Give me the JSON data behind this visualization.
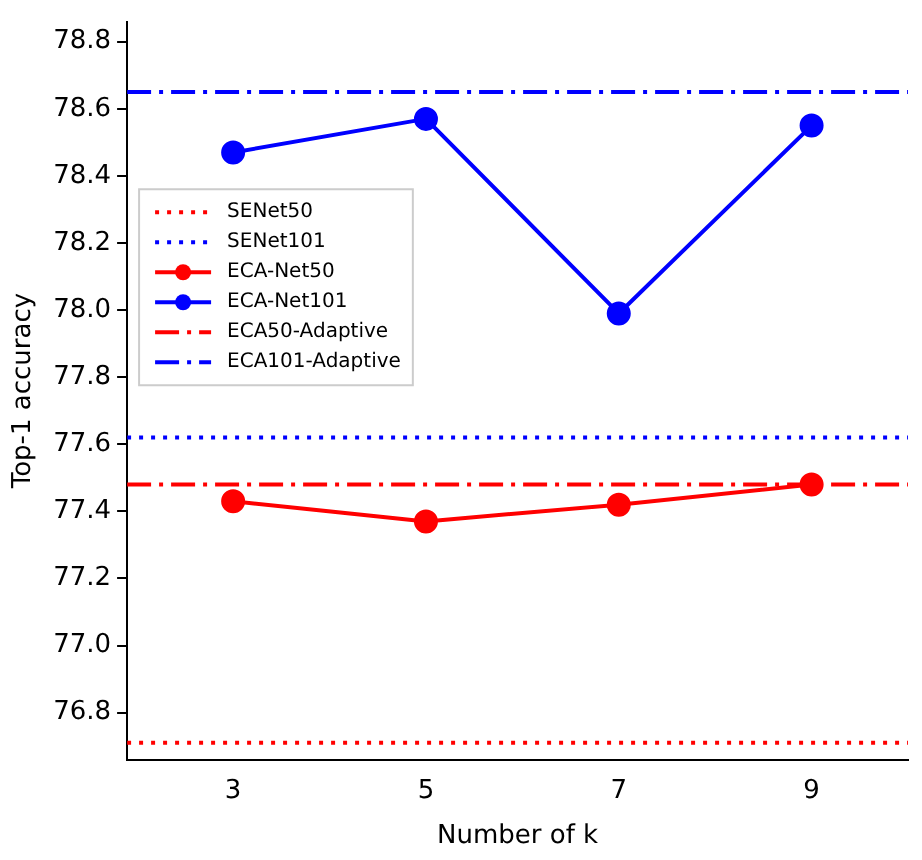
{
  "chart_data": {
    "type": "line",
    "xlabel": "Number of k",
    "ylabel": "Top-1 accuracy",
    "x": [
      3,
      5,
      7,
      9
    ],
    "series": [
      {
        "name": "ECA-Net50",
        "color": "#ff0000",
        "values": [
          77.43,
          77.37,
          77.42,
          77.48
        ]
      },
      {
        "name": "ECA-Net101",
        "color": "#0000ff",
        "values": [
          78.47,
          78.57,
          77.99,
          78.55
        ]
      }
    ],
    "ref_lines": [
      {
        "axis": "y",
        "value": 76.71,
        "label": "SENet50",
        "color": "#ff0000",
        "line_style": "dotted"
      },
      {
        "axis": "y",
        "value": 77.62,
        "label": "SENet101",
        "color": "#0000ff",
        "line_style": "dotted"
      },
      {
        "axis": "y",
        "value": 77.48,
        "label": "ECA50-Adaptive",
        "color": "#ff0000",
        "line_style": "dashed"
      },
      {
        "axis": "y",
        "value": 78.65,
        "label": "ECA101-Adaptive",
        "color": "#0000ff",
        "line_style": "dashed"
      }
    ],
    "xlim": [
      1.9,
      10
    ],
    "xticks": [
      3,
      5,
      7,
      9
    ],
    "ylim": [
      76.66,
      78.86
    ],
    "yticks": [
      76.8,
      {
        "value": 77,
        "label": "77.0"
      },
      77.2,
      77.4,
      77.6,
      77.8,
      {
        "value": 78,
        "label": "78.0"
      },
      78.2,
      78.4,
      78.6,
      78.8
    ],
    "marker": "circle",
    "line_style": "solid",
    "legend": "left",
    "grid": false
  }
}
